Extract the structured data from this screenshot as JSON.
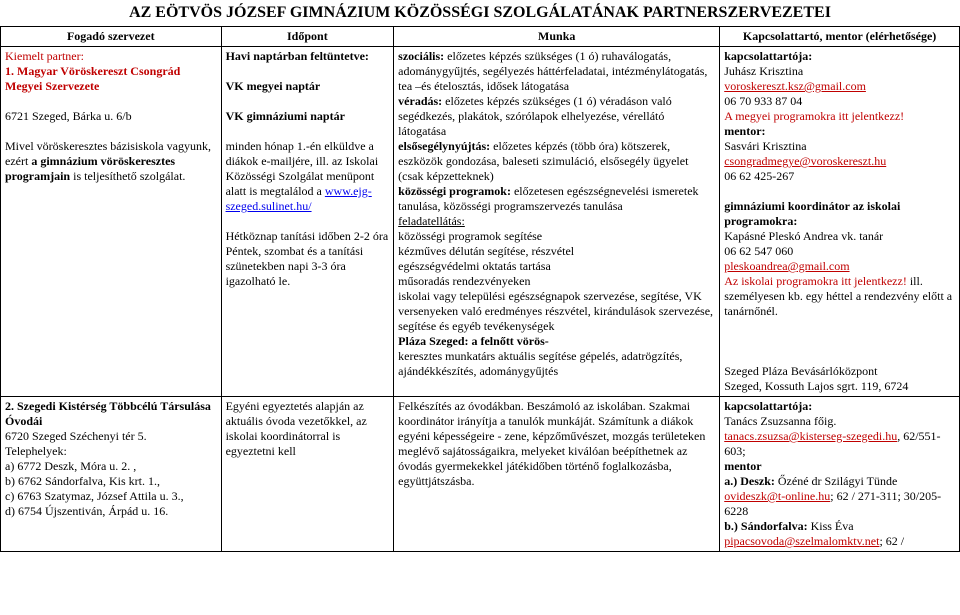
{
  "title": "AZ EÖTVÖS JÓZSEF GIMNÁZIUM KÖZÖSSÉGI SZOLGÁLATÁNAK PARTNERSZERVEZETEI",
  "columns": {
    "c1": "Fogadó szervezet",
    "c2": "Időpont",
    "c3": "Munka",
    "c4": "Kapcsolattartó, mentor (elérhetősége)"
  },
  "row1": {
    "cell1": {
      "kiemelt": "Kiemelt partner:",
      "name": "1. Magyar Vöröskereszt Csongrád Megyei Szervezete",
      "addr": "6721 Szeged, Bárka u. 6/b",
      "desc1": "Mivel vöröskeresztes bázisiskola vagyunk, ezért ",
      "desc_bold": "a gimnázium vöröskeresztes programjain",
      "desc2": " is teljesíthető szolgálat."
    },
    "cell2": {
      "l1": "Havi naptárban feltüntetve:",
      "l2": "VK megyei naptár",
      "l3": "VK gimnáziumi naptár",
      "l4a": "minden hónap 1.-én elküldve a diákok e-mailjére, ill. az Iskolai Közösségi Szolgálat menüpont alatt is megtalálod a ",
      "l4link": "www.ejg-szeged.sulinet.hu/",
      "l5": "Hétköznap tanítási időben 2-2 óra",
      "l6": "Péntek, szombat és a tanítási szünetekben napi 3-3 óra igazolható le."
    },
    "cell3": {
      "s1a": "szociális:",
      "s1b": " előzetes képzés szükséges (1 ó) ruhaválogatás, adománygyűjtés, segélyezés háttérfeladatai, intézménylátogatás, tea –és ételosztás, idősek látogatása",
      "s2a": "véradás:",
      "s2b": " előzetes képzés szükséges (1 ó) véradáson való segédkezés, plakátok, szórólapok elhelyezése, vérellátó látogatása",
      "s3a": "elsősegélynyújtás:",
      "s3b": " előzetes képzés (több óra) kötszerek, eszközök gondozása, baleseti szimuláció, elsősegély ügyelet",
      "s3c": "(csak képzetteknek)",
      "s4a": "közösségi programok:",
      "s4b": " előzetesen egészségnevelési ismeretek tanulása, közösségi programszervezés tanulása",
      "s5a": "feladatellátás:",
      "s5b": "közösségi programok segítése",
      "s5c": "kézműves délután segítése, részvétel",
      "s5d": "egészségvédelmi oktatás tartása",
      "s5e": "műsoradás rendezvényeken",
      "s5f": "iskolai vagy települési egészségnapok szervezése, segítése, VK versenyeken való eredményes részvétel, kirándulások szervezése, segítése és egyéb tevékenységek",
      "s6a": "Pláza Szeged: a felnőtt vörös-",
      "s6b": "keresztes munkatárs aktuális segítése gépelés, adatrögzítés, ajándékkészítés, adománygyűjtés"
    },
    "cell4": {
      "k0": "kapcsolattartója:",
      "k1": "Juhász Krisztina",
      "k2link": "voroskereszt.ksz@gmail.com",
      "k3": "06 70 933 87 04",
      "k4": "A megyei programokra itt jelentkezz!",
      "m0": "mentor:",
      "m1": "Sasvári Krisztina",
      "m2link": "csongradmegye@voroskereszt.hu",
      "m3": "06 62 425-267",
      "g0": "gimnáziumi koordinátor az iskolai programokra:",
      "g1": "Kapásné Pleskó Andrea vk. tanár",
      "g2": "06 62 547 060",
      "g3link": "pleskoandrea@gmail.com",
      "g4a": "Az iskolai programokra itt jelentkezz!",
      "g4b": " ill. személyesen kb. egy héttel a rendezvény előtt a tanárnőnél.",
      "p1": "Szeged Pláza Bevásárlóközpont",
      "p2": "Szeged, Kossuth Lajos sgrt. 119, 6724"
    }
  },
  "row2": {
    "cell1": {
      "name": "2. Szegedi Kistérség Többcélú Társulása Óvodái",
      "addr": "6720 Szeged Széchenyi tér 5.",
      "th": "Telephelyek:",
      "a": "a) 6772 Deszk, Móra u. 2. ,",
      "b": "b) 6762 Sándorfalva, Kis krt. 1.,",
      "c": "c) 6763 Szatymaz, József Attila u. 3.,",
      "d": "d) 6754 Újszentiván, Árpád u. 16."
    },
    "cell2": {
      "t": "Egyéni egyeztetés alapján az aktuális óvoda vezetőkkel, az iskolai koordinátorral is egyeztetni kell"
    },
    "cell3": {
      "t": "Felkészítés az óvodákban. Beszámoló az iskolában. Szakmai koordinátor irányítja a tanulók munkáját. Számítunk a diákok egyéni képességeire - zene, képzőművészet, mozgás területeken meglévő sajátosságaikra, melyeket kiválóan beépíthetnek az óvodás gyermekekkel játékidőben történő foglalkozásba, együttjátszásba."
    },
    "cell4": {
      "k0": "kapcsolattartója:",
      "k1": "Tanács Zsuzsanna főig.",
      "k2link": "tanacs.zsuzsa@kisterseg-szegedi.hu",
      "k2b": ", 62/551-603;",
      "m0": "mentor",
      "m1a": "a.) Deszk:",
      "m1b": " Őzéné dr Szilágyi Tünde",
      "m1link": "ovideszk@t-online.hu",
      "m1c": "; 62 / 271-311; 30/205-6228",
      "m2a": "b.) Sándorfalva:",
      "m2b": " Kiss Éva",
      "m2link": "pipacsovoda@szelmalomktv.net",
      "m2c": "; 62 /"
    }
  }
}
